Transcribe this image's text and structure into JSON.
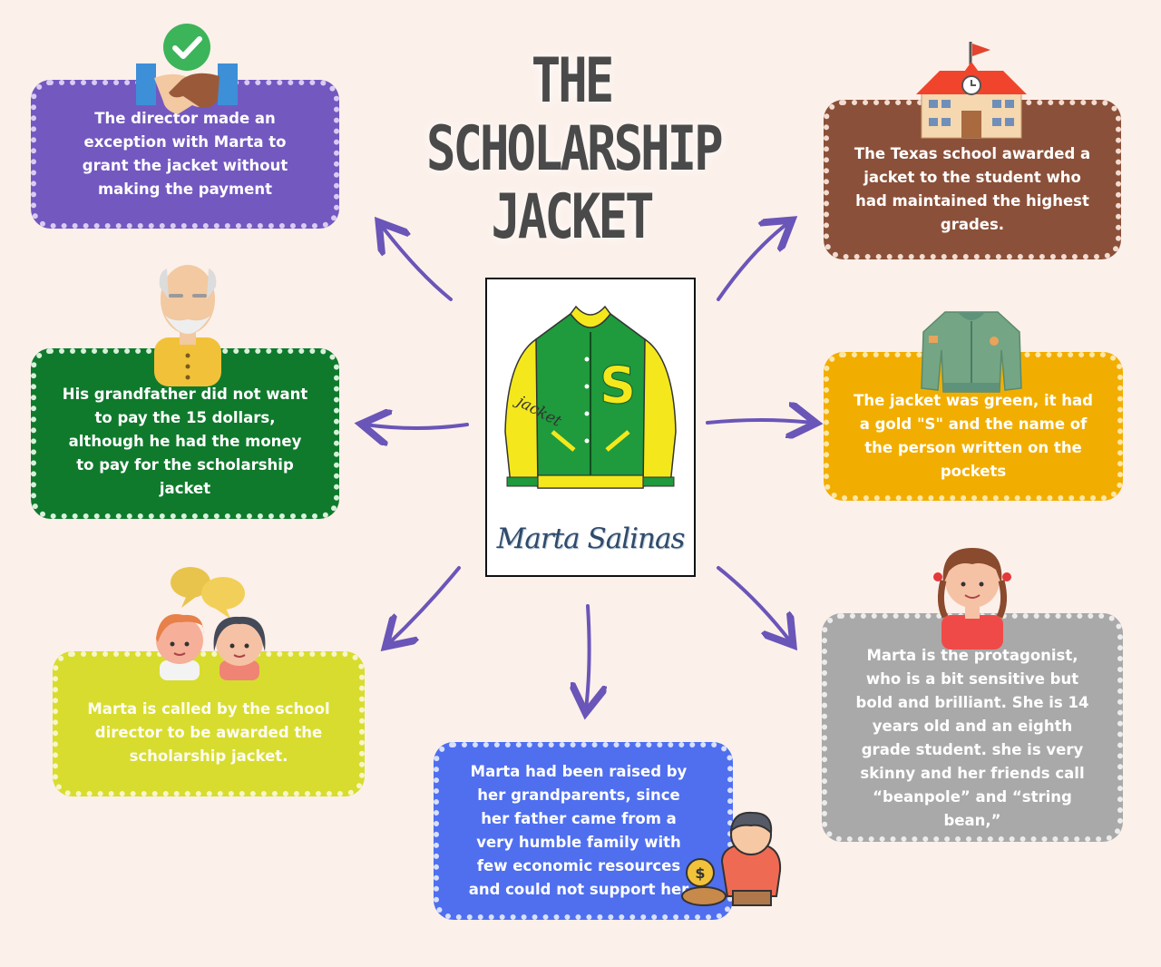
{
  "title": {
    "line1": "THE",
    "line2": "SCHOLARSHIP",
    "line3": "JACKET"
  },
  "center": {
    "name": "Marta Salinas",
    "jacket_word": "jacket",
    "jacket_letter": "S"
  },
  "boxes": {
    "director": "The director made an exception with Marta to grant the jacket without making the payment",
    "texas": "The Texas school awarded a jacket to the student who had maintained the highest grades.",
    "grandfather": "His grandfather did not want to pay the 15 dollars, although he had the money to pay for the scholarship jacket",
    "green": "The jacket was green, it had a gold \"S\" and the name of the person written on the pockets",
    "called": "Marta is called by the school director to be awarded the scholarship jacket.",
    "raised": "Marta had been raised by her grandparents, since her father came from a very humble family with few economic resources and could not support her",
    "protagonist": "Marta is the protagonist, who is a bit sensitive but bold and brilliant. She is 14 years old and an eighth grade student. she is very skinny and her friends call “beanpole” and “string bean,”"
  },
  "colors": {
    "background": "#fcf0ea",
    "arrow": "#6a55b8",
    "purple": "#7358c0",
    "brown": "#8b5039",
    "green": "#0f7a2c",
    "gold": "#f2ae00",
    "lime": "#d8dc2e",
    "blue": "#4f6fef",
    "gray": "#a9a9a9"
  },
  "icons": [
    "handshake-check-icon",
    "school-building-icon",
    "grandfather-icon",
    "green-jacket-icon",
    "chat-bubbles-people-icon",
    "poor-child-coin-icon",
    "girl-icon",
    "varsity-jacket-icon"
  ]
}
